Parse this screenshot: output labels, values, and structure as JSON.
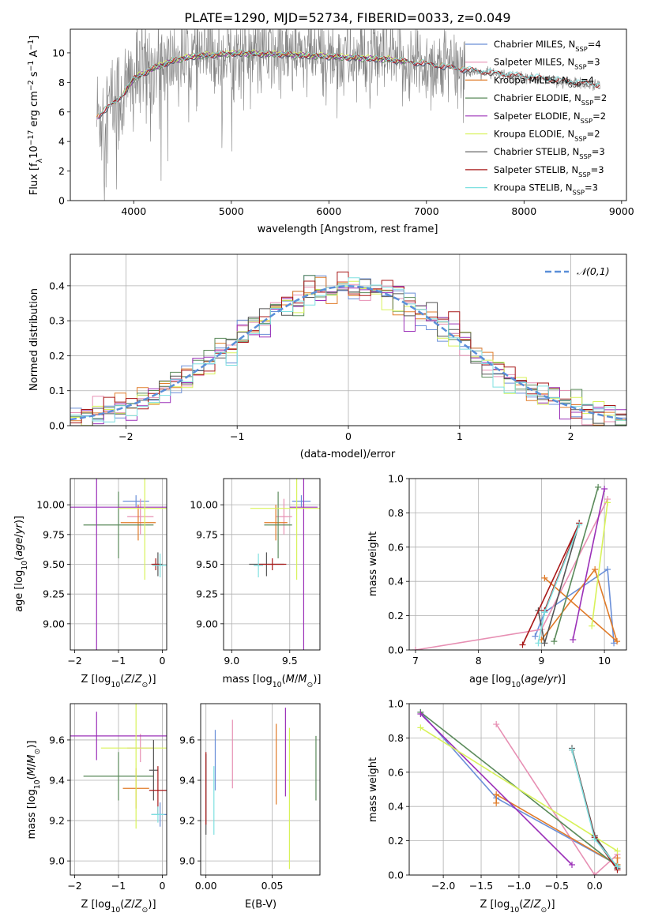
{
  "figure_title": "PLATE=1290, MJD=52734, FIBERID=0033, z=0.049",
  "colors": {
    "Chabrier MILES": "#6a8fd8",
    "Salpeter MILES": "#e78fb3",
    "Kroupa MILES": "#e07b28",
    "Chabrier ELODIE": "#5a8a5a",
    "Salpeter ELODIE": "#9b30b8",
    "Kroupa ELODIE": "#d8f25a",
    "Chabrier STELIB": "#555555",
    "Salpeter STELIB": "#a81818",
    "Kroupa STELIB": "#7ee0e0",
    "data": "#808080",
    "gaussian": "#5a8fd8"
  },
  "chart_data": [
    {
      "id": "spectrum",
      "type": "line",
      "xlabel": "wavelength [Angstrom, rest frame]",
      "ylabel": "Flux [f_λ 10^-17 erg cm^-2 s^-1 A^-1]",
      "xlim": [
        3350,
        9050
      ],
      "ylim": [
        0,
        11.6
      ],
      "xticks": [
        4000,
        5000,
        6000,
        7000,
        8000,
        9000
      ],
      "yticks": [
        0,
        2,
        4,
        6,
        8,
        10
      ],
      "legend_location": "right",
      "legend": [
        {
          "model": "Chabrier MILES",
          "nssp": "4"
        },
        {
          "model": "Salpeter MILES",
          "nssp": "3"
        },
        {
          "model": "Kroupa MILES",
          "nssp": "4"
        },
        {
          "model": "Chabrier ELODIE",
          "nssp": "2"
        },
        {
          "model": "Salpeter ELODIE",
          "nssp": "2"
        },
        {
          "model": "Kroupa ELODIE",
          "nssp": "2"
        },
        {
          "model": "Chabrier STELIB",
          "nssp": "3"
        },
        {
          "model": "Salpeter STELIB",
          "nssp": "3"
        },
        {
          "model": "Kroupa STELIB",
          "nssp": "3"
        }
      ],
      "model_ranges": {
        "MILES": [
          3620,
          7420
        ],
        "ELODIE": [
          3900,
          6800
        ],
        "STELIB": [
          3640,
          8780
        ]
      },
      "continuum_anchor_points": {
        "wavelength": [
          3600,
          3700,
          3800,
          3900,
          4000,
          4200,
          4400,
          4600,
          4800,
          5000,
          5200,
          5500,
          5800,
          6000,
          6300,
          6600,
          7000,
          7400,
          7800,
          8200,
          8600,
          9000
        ],
        "flux": [
          5.5,
          6.0,
          6.6,
          7.2,
          8.2,
          8.9,
          9.4,
          9.7,
          9.8,
          9.9,
          9.9,
          9.85,
          9.75,
          9.7,
          9.6,
          9.5,
          9.2,
          8.8,
          8.5,
          8.2,
          7.9,
          7.6
        ]
      }
    },
    {
      "id": "residuals",
      "type": "histogram",
      "xlabel": "(data-model)/error",
      "ylabel": "Normed distribution",
      "xlim": [
        -2.5,
        2.5
      ],
      "ylim": [
        0,
        0.49
      ],
      "xticks": [
        -2,
        -1,
        0,
        1,
        2
      ],
      "yticks": [
        0.0,
        0.1,
        0.2,
        0.3,
        0.4
      ],
      "grid": true,
      "bin_edges_range": [
        -2.5,
        2.5
      ],
      "bin_width": 0.1,
      "reference_curve": {
        "name": "𝒩(0,1)",
        "style": "dashed"
      },
      "legend_location": "top-right"
    },
    {
      "id": "age_vs_Z",
      "type": "errorbar",
      "xlabel": "Z [log10(Z/Z☉)]",
      "ylabel": "age  [log10(age/yr)]",
      "xlim": [
        -2.1,
        0.1
      ],
      "ylim": [
        8.78,
        10.22
      ],
      "xticks": [
        -2,
        -1,
        0
      ],
      "yticks": [
        9.0,
        9.25,
        9.5,
        9.75,
        10.0
      ],
      "grid": true,
      "points": [
        {
          "model": "Chabrier MILES",
          "x": -0.6,
          "xerr": 0.3,
          "y": 10.03,
          "yerr": 0.05
        },
        {
          "model": "Salpeter MILES",
          "x": -0.5,
          "xerr": 0.3,
          "y": 9.9,
          "yerr": 0.15
        },
        {
          "model": "Kroupa MILES",
          "x": -0.55,
          "xerr": 0.4,
          "y": 9.85,
          "yerr": 0.15
        },
        {
          "model": "Chabrier ELODIE",
          "x": -1.0,
          "xerr": 0.8,
          "y": 9.83,
          "yerr": 0.28
        },
        {
          "model": "Salpeter ELODIE",
          "x": -1.5,
          "xerr": 1.8,
          "y": 9.98,
          "yerr": 1.2
        },
        {
          "model": "Kroupa ELODIE",
          "x": -0.4,
          "xerr": 0.6,
          "y": 9.97,
          "yerr": 0.6
        },
        {
          "model": "Chabrier STELIB",
          "x": -0.1,
          "xerr": 0.1,
          "y": 9.5,
          "yerr": 0.1
        },
        {
          "model": "Salpeter STELIB",
          "x": -0.15,
          "xerr": 0.1,
          "y": 9.5,
          "yerr": 0.05
        },
        {
          "model": "Kroupa STELIB",
          "x": -0.05,
          "xerr": 0.18,
          "y": 9.49,
          "yerr": 0.1
        }
      ]
    },
    {
      "id": "age_vs_mass",
      "type": "errorbar",
      "xlabel": "mass [log10(M/M☉)]",
      "ylabel": "",
      "xlim": [
        8.93,
        9.76
      ],
      "ylim": [
        8.78,
        10.22
      ],
      "xticks": [
        9.0,
        9.5
      ],
      "yticks": [
        9.0,
        9.25,
        9.5,
        9.75,
        10.0
      ],
      "grid": true,
      "points": [
        {
          "model": "Chabrier MILES",
          "x": 9.6,
          "xerr": 0.08,
          "y": 10.03,
          "yerr": 0.05
        },
        {
          "model": "Salpeter MILES",
          "x": 9.45,
          "xerr": 0.07,
          "y": 9.9,
          "yerr": 0.15
        },
        {
          "model": "Kroupa MILES",
          "x": 9.38,
          "xerr": 0.1,
          "y": 9.85,
          "yerr": 0.15
        },
        {
          "model": "Chabrier ELODIE",
          "x": 9.4,
          "xerr": 0.12,
          "y": 9.83,
          "yerr": 0.28
        },
        {
          "model": "Salpeter ELODIE",
          "x": 9.62,
          "xerr": 0.12,
          "y": 9.98,
          "yerr": 1.2
        },
        {
          "model": "Kroupa ELODIE",
          "x": 9.56,
          "xerr": 0.4,
          "y": 9.97,
          "yerr": 0.6
        },
        {
          "model": "Chabrier STELIB",
          "x": 9.3,
          "xerr": 0.15,
          "y": 9.5,
          "yerr": 0.1
        },
        {
          "model": "Salpeter STELIB",
          "x": 9.35,
          "xerr": 0.12,
          "y": 9.5,
          "yerr": 0.05
        },
        {
          "model": "Kroupa STELIB",
          "x": 9.23,
          "xerr": 0.04,
          "y": 9.49,
          "yerr": 0.1
        }
      ]
    },
    {
      "id": "weight_vs_age",
      "type": "line",
      "xlabel": "age  [log10(age/yr)]",
      "ylabel": "mass weight",
      "xlim": [
        6.9,
        10.35
      ],
      "ylim": [
        0,
        1.0
      ],
      "xticks": [
        7,
        8,
        9,
        10
      ],
      "yticks": [
        0.0,
        0.2,
        0.4,
        0.6,
        0.8,
        1.0
      ],
      "grid": true,
      "series": [
        {
          "model": "Chabrier MILES",
          "x": [
            8.9,
            9.05,
            10.05,
            10.15
          ],
          "y": [
            0.08,
            0.22,
            0.47,
            0.04
          ]
        },
        {
          "model": "Salpeter MILES",
          "x": [
            7.0,
            9.0,
            10.05
          ],
          "y": [
            0.0,
            0.12,
            0.88
          ]
        },
        {
          "model": "Kroupa MILES",
          "x": [
            9.0,
            9.85,
            10.2,
            9.05
          ],
          "y": [
            0.06,
            0.47,
            0.05,
            0.42
          ]
        },
        {
          "model": "Chabrier ELODIE",
          "x": [
            9.2,
            9.9
          ],
          "y": [
            0.05,
            0.95
          ]
        },
        {
          "model": "Salpeter ELODIE",
          "x": [
            9.5,
            10.0
          ],
          "y": [
            0.06,
            0.94
          ]
        },
        {
          "model": "Kroupa ELODIE",
          "x": [
            9.8,
            10.05
          ],
          "y": [
            0.14,
            0.86
          ]
        },
        {
          "model": "Chabrier STELIB",
          "x": [
            8.95,
            9.05,
            9.6
          ],
          "y": [
            0.23,
            0.04,
            0.74
          ]
        },
        {
          "model": "Salpeter STELIB",
          "x": [
            8.7,
            9.6,
            9.05
          ],
          "y": [
            0.03,
            0.74,
            0.23
          ]
        },
        {
          "model": "Kroupa STELIB",
          "x": [
            8.95,
            9.05,
            9.6
          ],
          "y": [
            0.04,
            0.22,
            0.73
          ]
        }
      ]
    },
    {
      "id": "mass_vs_Z",
      "type": "errorbar",
      "xlabel": "Z [log10(Z/Z☉)]",
      "ylabel": "mass [log10(M/M☉)]",
      "xlim": [
        -2.1,
        0.1
      ],
      "ylim": [
        8.93,
        9.78
      ],
      "xticks": [
        -2,
        -1,
        0
      ],
      "yticks": [
        9.0,
        9.2,
        9.4,
        9.6
      ],
      "grid": true,
      "points": [
        {
          "model": "Chabrier MILES",
          "x": -0.05,
          "xerr": 0.2,
          "y": 9.23,
          "yerr": 0.06
        },
        {
          "model": "Salpeter MILES",
          "x": -0.5,
          "xerr": 0.3,
          "y": 9.56,
          "yerr": 0.07
        },
        {
          "model": "Kroupa MILES",
          "x": -0.6,
          "xerr": 0.3,
          "y": 9.36,
          "yerr": 0.1
        },
        {
          "model": "Chabrier ELODIE",
          "x": -1.0,
          "xerr": 0.8,
          "y": 9.42,
          "yerr": 0.12
        },
        {
          "model": "Salpeter ELODIE",
          "x": -1.5,
          "xerr": 1.8,
          "y": 9.62,
          "yerr": 0.12
        },
        {
          "model": "Kroupa ELODIE",
          "x": -0.6,
          "xerr": 0.8,
          "y": 9.56,
          "yerr": 0.4
        },
        {
          "model": "Chabrier STELIB",
          "x": -0.2,
          "xerr": 0.1,
          "y": 9.45,
          "yerr": 0.15
        },
        {
          "model": "Salpeter STELIB",
          "x": -0.1,
          "xerr": 0.2,
          "y": 9.35,
          "yerr": 0.12
        },
        {
          "model": "Kroupa STELIB",
          "x": -0.1,
          "xerr": 0.15,
          "y": 9.23,
          "yerr": 0.04
        }
      ]
    },
    {
      "id": "mass_vs_ebv",
      "type": "errorbar",
      "xlabel": "E(B-V)",
      "ylabel": "",
      "xlim": [
        -0.004,
        0.086
      ],
      "ylim": [
        8.93,
        9.78
      ],
      "xticks": [
        0.0,
        0.05
      ],
      "yticks": [
        9.0,
        9.2,
        9.4,
        9.6
      ],
      "grid": true,
      "points": [
        {
          "model": "Chabrier MILES",
          "x": 0.007,
          "y": 9.5,
          "yerr": 0.15
        },
        {
          "model": "Salpeter MILES",
          "x": 0.02,
          "y": 9.53,
          "yerr": 0.17
        },
        {
          "model": "Kroupa MILES",
          "x": 0.053,
          "y": 9.48,
          "yerr": 0.2
        },
        {
          "model": "Chabrier ELODIE",
          "x": 0.083,
          "y": 9.46,
          "yerr": 0.16
        },
        {
          "model": "Salpeter ELODIE",
          "x": 0.06,
          "y": 9.54,
          "yerr": 0.22
        },
        {
          "model": "Kroupa ELODIE",
          "x": 0.063,
          "y": 9.31,
          "yerr": 0.35
        },
        {
          "model": "Chabrier STELIB",
          "x": 0.0,
          "y": 9.33,
          "yerr": 0.2
        },
        {
          "model": "Salpeter STELIB",
          "x": 0.0,
          "y": 9.36,
          "yerr": 0.18
        },
        {
          "model": "Kroupa STELIB",
          "x": 0.006,
          "y": 9.3,
          "yerr": 0.17
        }
      ]
    },
    {
      "id": "weight_vs_Z",
      "type": "line",
      "xlabel": "Z [log10(Z/Z☉)]",
      "ylabel": "mass weight",
      "xlim": [
        -2.45,
        0.42
      ],
      "ylim": [
        0,
        1.0
      ],
      "xticks": [
        -2.0,
        -1.5,
        -1.0,
        -0.5,
        0.0
      ],
      "yticks": [
        0.0,
        0.2,
        0.4,
        0.6,
        0.8,
        1.0
      ],
      "grid": true,
      "series": [
        {
          "model": "Chabrier MILES",
          "x": [
            -2.3,
            -1.3,
            0.3,
            0.3
          ],
          "y": [
            0.95,
            0.45,
            0.06,
            0.04
          ]
        },
        {
          "model": "Salpeter MILES",
          "x": [
            -1.3,
            0.0,
            0.3
          ],
          "y": [
            0.88,
            0.0,
            0.12
          ]
        },
        {
          "model": "Kroupa MILES",
          "x": [
            -1.3,
            -1.3,
            0.3,
            0.3
          ],
          "y": [
            0.42,
            0.47,
            0.06,
            0.1
          ]
        },
        {
          "model": "Chabrier ELODIE",
          "x": [
            -2.3,
            0.3
          ],
          "y": [
            0.95,
            0.05
          ]
        },
        {
          "model": "Salpeter ELODIE",
          "x": [
            -2.3,
            -0.3
          ],
          "y": [
            0.94,
            0.06
          ]
        },
        {
          "model": "Kroupa ELODIE",
          "x": [
            -2.3,
            0.3
          ],
          "y": [
            0.86,
            0.14
          ]
        },
        {
          "model": "Chabrier STELIB",
          "x": [
            -0.3,
            0.0,
            0.3
          ],
          "y": [
            0.74,
            0.23,
            0.04
          ]
        },
        {
          "model": "Salpeter STELIB",
          "x": [
            -0.3,
            0.0,
            0.3
          ],
          "y": [
            0.73,
            0.22,
            0.03
          ]
        },
        {
          "model": "Kroupa STELIB",
          "x": [
            -0.3,
            0.0,
            0.3
          ],
          "y": [
            0.73,
            0.21,
            0.05
          ]
        }
      ]
    }
  ]
}
